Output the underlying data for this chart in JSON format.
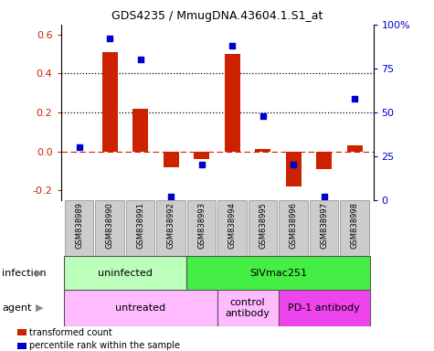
{
  "title": "GDS4235 / MmugDNA.43604.1.S1_at",
  "samples": [
    "GSM838989",
    "GSM838990",
    "GSM838991",
    "GSM838992",
    "GSM838993",
    "GSM838994",
    "GSM838995",
    "GSM838996",
    "GSM838997",
    "GSM838998"
  ],
  "bar_values": [
    0.0,
    0.51,
    0.22,
    -0.08,
    -0.04,
    0.5,
    0.01,
    -0.18,
    -0.09,
    0.03
  ],
  "dot_values_pct": [
    30,
    92,
    80,
    2,
    20,
    88,
    48,
    20,
    2,
    58
  ],
  "bar_color": "#cc2200",
  "dot_color": "#0000cc",
  "ylim": [
    -0.25,
    0.65
  ],
  "y2lim": [
    0,
    100
  ],
  "yticks": [
    -0.2,
    0.0,
    0.2,
    0.4,
    0.6
  ],
  "y2ticks": [
    0,
    25,
    50,
    75,
    100
  ],
  "y2ticklabels": [
    "0",
    "25",
    "50",
    "75",
    "100%"
  ],
  "dotted_lines": [
    0.2,
    0.4
  ],
  "zero_line": 0.0,
  "infection_groups": [
    {
      "label": "uninfected",
      "start": 0,
      "end": 4,
      "color": "#bbffbb"
    },
    {
      "label": "SIVmac251",
      "start": 4,
      "end": 10,
      "color": "#44ee44"
    }
  ],
  "agent_groups": [
    {
      "label": "untreated",
      "start": 0,
      "end": 5,
      "color": "#ffbbff"
    },
    {
      "label": "control\nantibody",
      "start": 5,
      "end": 7,
      "color": "#ffbbff"
    },
    {
      "label": "PD-1 antibody",
      "start": 7,
      "end": 10,
      "color": "#ee44ee"
    }
  ],
  "legend_items": [
    {
      "color": "#cc2200",
      "label": "transformed count"
    },
    {
      "color": "#0000cc",
      "label": "percentile rank within the sample"
    }
  ],
  "infection_label": "infection",
  "agent_label": "agent",
  "bg_color": "#ffffff",
  "tick_area_color": "#cccccc"
}
